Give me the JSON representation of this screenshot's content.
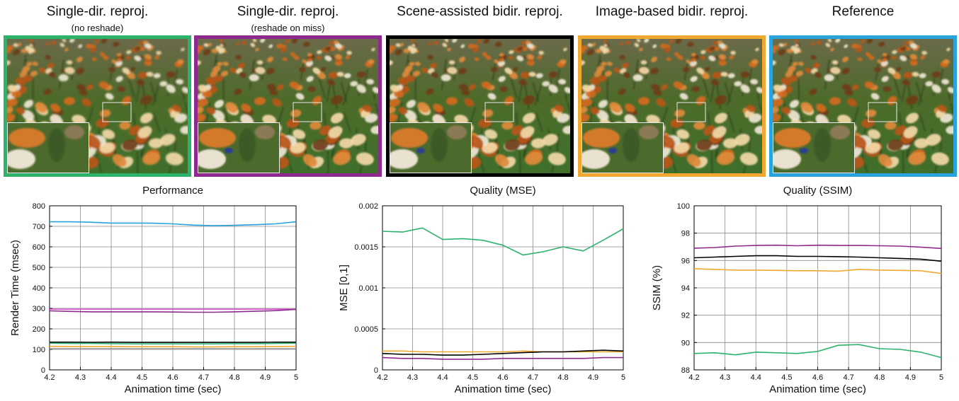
{
  "panels": [
    {
      "title": "Single-dir. reproj.",
      "subtitle": "(no reshade)",
      "border": "#2db26c"
    },
    {
      "title": "Single-dir. reproj.",
      "subtitle": "(reshade on miss)",
      "border": "#8e2a8e"
    },
    {
      "title": "Scene-assisted bidir. reproj.",
      "subtitle": "",
      "border": "#000000"
    },
    {
      "title": "Image-based bidir. reproj.",
      "subtitle": "",
      "border": "#f0a830"
    },
    {
      "title": "Reference",
      "subtitle": "",
      "border": "#29a3dc"
    }
  ],
  "chart_data": [
    {
      "type": "line",
      "title": "Performance",
      "xlabel": "Animation time (sec)",
      "ylabel": "Render Time (msec)",
      "xlim": [
        4.2,
        5
      ],
      "ylim": [
        0,
        800
      ],
      "xticks": [
        4.2,
        4.3,
        4.4,
        4.5,
        4.6,
        4.7,
        4.8,
        4.9,
        5
      ],
      "yticks": [
        0,
        100,
        200,
        300,
        400,
        500,
        600,
        700,
        800
      ],
      "ytick_labels": [
        "0",
        "100",
        "200",
        "300",
        "400",
        "500",
        "600",
        "700",
        "800"
      ],
      "grid": true,
      "x": [
        4.2,
        4.267,
        4.333,
        4.4,
        4.467,
        4.533,
        4.6,
        4.667,
        4.733,
        4.8,
        4.867,
        4.933,
        5
      ],
      "series": [
        {
          "color": "#29a3dc",
          "values": [
            722,
            722,
            720,
            716,
            716,
            715,
            712,
            706,
            703,
            705,
            708,
            712,
            722
          ]
        },
        {
          "color": "#e05ad8",
          "values": [
            296,
            296,
            296,
            296,
            296,
            296,
            296,
            296,
            296,
            296,
            296,
            296,
            296
          ]
        },
        {
          "color": "#8e2a8e",
          "values": [
            288,
            285,
            283,
            283,
            283,
            283,
            282,
            281,
            281,
            283,
            286,
            289,
            295
          ]
        },
        {
          "color": "#000000",
          "values": [
            135,
            135,
            134,
            135,
            134,
            134,
            134,
            134,
            134,
            134,
            134,
            135,
            135
          ]
        },
        {
          "color": "#2db26c",
          "values": [
            130,
            129,
            129,
            128,
            127,
            127,
            127,
            127,
            127,
            128,
            128,
            129,
            130
          ]
        },
        {
          "color": "#f0a830",
          "values": [
            115,
            114,
            114,
            114,
            113,
            113,
            113,
            112,
            112,
            113,
            113,
            114,
            115
          ]
        },
        {
          "color": "#999999",
          "values": [
            103,
            103,
            103,
            103,
            103,
            103,
            103,
            103,
            103,
            103,
            103,
            103,
            103
          ]
        }
      ]
    },
    {
      "type": "line",
      "title": "Quality (MSE)",
      "xlabel": "Animation time (sec)",
      "ylabel": "MSE [0,1]",
      "xlim": [
        4.2,
        5
      ],
      "ylim": [
        0,
        0.002
      ],
      "xticks": [
        4.2,
        4.3,
        4.4,
        4.5,
        4.6,
        4.7,
        4.8,
        4.9,
        5
      ],
      "yticks": [
        0,
        0.0005,
        0.001,
        0.0015,
        0.002
      ],
      "ytick_labels": [
        "0",
        "0.0005",
        "0.001",
        "0.0015",
        "0.002"
      ],
      "grid": true,
      "x": [
        4.2,
        4.267,
        4.333,
        4.4,
        4.467,
        4.533,
        4.6,
        4.667,
        4.733,
        4.8,
        4.867,
        4.933,
        5
      ],
      "series": [
        {
          "color": "#2db26c",
          "values": [
            0.00169,
            0.00168,
            0.00173,
            0.00159,
            0.0016,
            0.00158,
            0.00152,
            0.0014,
            0.00144,
            0.0015,
            0.00145,
            0.00158,
            0.00172
          ]
        },
        {
          "color": "#f0a830",
          "values": [
            0.00023,
            0.00023,
            0.00022,
            0.00022,
            0.00022,
            0.00022,
            0.00022,
            0.00023,
            0.00022,
            0.00022,
            0.00022,
            0.00022,
            0.00022
          ]
        },
        {
          "color": "#000000",
          "values": [
            0.0002,
            0.00019,
            0.00019,
            0.00018,
            0.00018,
            0.00019,
            0.0002,
            0.00021,
            0.00022,
            0.00022,
            0.00023,
            0.00024,
            0.00023
          ]
        },
        {
          "color": "#8e2a8e",
          "values": [
            0.00015,
            0.00014,
            0.00014,
            0.00013,
            0.00013,
            0.00013,
            0.00014,
            0.00014,
            0.00014,
            0.00014,
            0.00014,
            0.00015,
            0.00015
          ]
        }
      ]
    },
    {
      "type": "line",
      "title": "Quality (SSIM)",
      "xlabel": "Animation time (sec)",
      "ylabel": "SSIM (%)",
      "xlim": [
        4.2,
        5
      ],
      "ylim": [
        88,
        100
      ],
      "xticks": [
        4.2,
        4.3,
        4.4,
        4.5,
        4.6,
        4.7,
        4.8,
        4.9,
        5
      ],
      "yticks": [
        88,
        90,
        92,
        94,
        96,
        98,
        100
      ],
      "ytick_labels": [
        "88",
        "90",
        "92",
        "94",
        "96",
        "98",
        "100"
      ],
      "grid": true,
      "x": [
        4.2,
        4.267,
        4.333,
        4.4,
        4.467,
        4.533,
        4.6,
        4.667,
        4.733,
        4.8,
        4.867,
        4.933,
        5
      ],
      "series": [
        {
          "color": "#8e2a8e",
          "values": [
            96.9,
            96.95,
            97.05,
            97.1,
            97.12,
            97.08,
            97.12,
            97.1,
            97.1,
            97.08,
            97.05,
            96.98,
            96.88
          ]
        },
        {
          "color": "#000000",
          "values": [
            96.2,
            96.25,
            96.3,
            96.35,
            96.35,
            96.3,
            96.3,
            96.28,
            96.25,
            96.2,
            96.15,
            96.1,
            95.95
          ]
        },
        {
          "color": "#f0a830",
          "values": [
            95.4,
            95.35,
            95.3,
            95.3,
            95.28,
            95.25,
            95.25,
            95.22,
            95.35,
            95.3,
            95.28,
            95.25,
            95.05
          ]
        },
        {
          "color": "#2db26c",
          "values": [
            89.2,
            89.25,
            89.1,
            89.3,
            89.25,
            89.2,
            89.35,
            89.8,
            89.85,
            89.55,
            89.5,
            89.3,
            88.9
          ]
        }
      ]
    }
  ]
}
